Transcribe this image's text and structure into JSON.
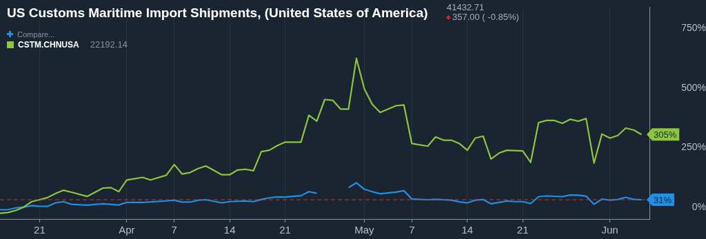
{
  "chart_data": {
    "type": "line",
    "title": "US Customs Maritime Import Shipments, (United States of America)",
    "annotations": [
      "41432.71",
      "357.00 ( -0.85%)",
      "Compare...",
      "22192.14"
    ],
    "legend": "top left",
    "grid": "x",
    "marker": "none",
    "line_style": "solid",
    "xlim": [
      "--03-16",
      "--06-06"
    ],
    "xticks": [
      {
        "value": "--03-21",
        "label": "21"
      },
      {
        "value": "--04-01",
        "label": "Apr"
      },
      {
        "value": "--04-07",
        "label": "7"
      },
      {
        "value": "--04-14",
        "label": "14"
      },
      {
        "value": "--04-21",
        "label": "21"
      },
      {
        "value": "--05-01",
        "label": "May"
      },
      {
        "value": "--05-07",
        "label": "7"
      },
      {
        "value": "--05-14",
        "label": "14"
      },
      {
        "value": "--05-21",
        "label": "21"
      },
      {
        "value": "--06-01",
        "label": "Jun"
      }
    ],
    "ylim": [
      -50,
      840
    ],
    "yticks": [
      {
        "value": 0,
        "label": "0%"
      },
      {
        "value": 250,
        "label": "250%"
      },
      {
        "value": 500,
        "label": "500%"
      },
      {
        "value": 750,
        "label": "750%"
      }
    ],
    "ref_lines": [
      {
        "axis": "y",
        "value": 31,
        "color": "#c0392b",
        "line_style": "dashed"
      }
    ],
    "series": [
      {
        "name": "CSTM.CHNUSA",
        "color": "#8cc63f",
        "x": [
          "--03-16",
          "--03-17",
          "--03-18",
          "--03-19",
          "--03-20",
          "--03-21",
          "--03-22",
          "--03-23",
          "--03-24",
          "--03-25",
          "--03-27",
          "--03-29",
          "--03-30",
          "--03-31",
          "--04-01",
          "--04-03",
          "--04-04",
          "--04-06",
          "--04-07",
          "--04-08",
          "--04-09",
          "--04-10",
          "--04-11",
          "--04-13",
          "--04-14",
          "--04-15",
          "--04-16",
          "--04-17",
          "--04-18",
          "--04-19",
          "--04-20",
          "--04-21",
          "--04-23",
          "--04-24",
          "--04-25",
          "--04-26",
          "--04-27",
          "--04-28",
          "--04-29",
          "--04-30",
          "--05-01",
          "--05-02",
          "--05-03",
          "--05-05",
          "--05-06",
          "--05-07",
          "--05-09",
          "--05-10",
          "--05-11",
          "--05-12",
          "--05-13",
          "--05-14",
          "--05-15",
          "--05-16",
          "--05-17",
          "--05-18",
          "--05-19",
          "--05-21",
          "--05-22",
          "--05-23",
          "--05-24",
          "--05-25",
          "--05-26",
          "--05-27",
          "--05-28",
          "--05-29",
          "--05-30",
          "--05-31",
          "--06-01",
          "--06-02",
          "--06-03",
          "--06-04",
          "--06-05"
        ],
        "values": [
          -26,
          -23,
          -14,
          0,
          23,
          31,
          40,
          57,
          71,
          63,
          45,
          80,
          82,
          65,
          114,
          125,
          114,
          134,
          179,
          139,
          145,
          162,
          173,
          136,
          136,
          156,
          159,
          153,
          233,
          239,
          258,
          273,
          273,
          386,
          361,
          452,
          449,
          412,
          412,
          625,
          497,
          432,
          398,
          426,
          429,
          267,
          256,
          295,
          281,
          281,
          267,
          239,
          290,
          298,
          202,
          227,
          239,
          236,
          188,
          355,
          364,
          364,
          352,
          369,
          361,
          372,
          185,
          307,
          290,
          301,
          332,
          324,
          305
        ],
        "value_labels": [
          null,
          null,
          null,
          null,
          null,
          null,
          null,
          null,
          null,
          null,
          null,
          null,
          null,
          null,
          null,
          null,
          null,
          null,
          null,
          null,
          null,
          null,
          null,
          null,
          null,
          null,
          null,
          null,
          null,
          null,
          null,
          null,
          null,
          null,
          null,
          null,
          null,
          null,
          null,
          null,
          null,
          null,
          null,
          null,
          null,
          null,
          null,
          null,
          null,
          null,
          null,
          null,
          null,
          null,
          null,
          null,
          null,
          null,
          null,
          null,
          null,
          null,
          null,
          null,
          null,
          null,
          null,
          null,
          null,
          null,
          null,
          null,
          "305%"
        ]
      },
      {
        "color": "#1e90e8",
        "x": [
          "--03-16",
          "--03-17",
          "--03-18",
          "--03-19",
          "--03-20",
          "--03-21",
          "--03-22",
          "--03-23",
          "--03-24",
          "--03-25",
          "--03-27",
          "--03-29",
          "--03-31",
          "--04-01",
          "--04-03",
          "--04-06",
          "--04-07",
          "--04-08",
          "--04-09",
          "--04-10",
          "--04-11",
          "--04-13",
          "--04-14",
          "--04-16",
          "--04-17",
          "--04-18",
          "--04-19",
          "--04-20",
          "--04-21",
          "--04-23",
          "--04-24",
          "--04-25",
          "--04-26",
          "--04-27",
          "--04-28",
          "--04-29",
          "--04-30",
          "--05-01",
          "--05-02",
          "--05-03",
          "--05-05",
          "--05-06",
          "--05-07",
          "--05-09",
          "--05-10",
          "--05-11",
          "--05-12",
          "--05-13",
          "--05-14",
          "--05-15",
          "--05-16",
          "--05-17",
          "--05-18",
          "--05-19",
          "--05-20",
          "--05-21",
          "--05-22",
          "--05-23",
          "--05-24",
          "--05-26",
          "--05-27",
          "--05-28",
          "--05-29",
          "--05-30",
          "--05-31",
          "--06-01",
          "--06-02",
          "--06-03",
          "--06-04",
          "--06-05"
        ],
        "values": [
          -11,
          -11,
          -3,
          0,
          6,
          4,
          3,
          18,
          23,
          12,
          8,
          14,
          9,
          20,
          20,
          26,
          29,
          21,
          21,
          29,
          31,
          18,
          23,
          26,
          23,
          32,
          39,
          43,
          42,
          48,
          65,
          58,
          null,
          null,
          null,
          82,
          102,
          75,
          65,
          56,
          63,
          69,
          34,
          31,
          33,
          31,
          29,
          22,
          18,
          29,
          32,
          14,
          20,
          26,
          23,
          23,
          15,
          44,
          47,
          44,
          51,
          50,
          46,
          12,
          34,
          29,
          32,
          41,
          33,
          31
        ],
        "value_labels": [
          null,
          null,
          null,
          null,
          null,
          null,
          null,
          null,
          null,
          null,
          null,
          null,
          null,
          null,
          null,
          null,
          null,
          null,
          null,
          null,
          null,
          null,
          null,
          null,
          null,
          null,
          null,
          null,
          null,
          null,
          null,
          null,
          null,
          null,
          null,
          null,
          null,
          null,
          null,
          null,
          null,
          null,
          null,
          null,
          null,
          null,
          null,
          null,
          null,
          null,
          null,
          null,
          null,
          null,
          null,
          null,
          null,
          null,
          null,
          null,
          null,
          null,
          null,
          null,
          null,
          null,
          null,
          null,
          null,
          "31%"
        ]
      }
    ]
  }
}
